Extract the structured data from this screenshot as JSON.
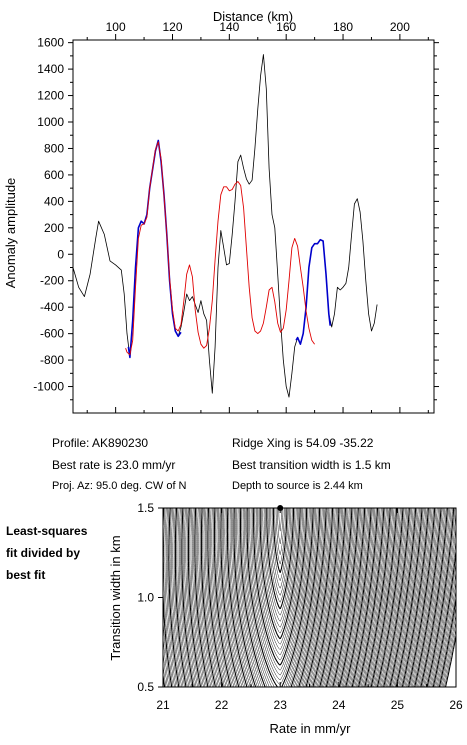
{
  "chart_data": [
    {
      "type": "line",
      "title": "",
      "xlabel": "Distance (km)",
      "ylabel": "Anomaly amplitude",
      "xlim": [
        85,
        212
      ],
      "ylim": [
        -1200,
        1620
      ],
      "x_axis_position": "top",
      "xticks": [
        100,
        120,
        140,
        160,
        180,
        200
      ],
      "yticks": [
        -1000,
        -800,
        -600,
        -400,
        -200,
        0,
        200,
        400,
        600,
        800,
        1000,
        1200,
        1400,
        1600
      ],
      "grid": false,
      "series": [
        {
          "color": "#000000",
          "points": [
            [
              85,
              -100
            ],
            [
              87,
              -250
            ],
            [
              89,
              -320
            ],
            [
              91,
              -150
            ],
            [
              93,
              120
            ],
            [
              94,
              250
            ],
            [
              96,
              150
            ],
            [
              98,
              -50
            ],
            [
              100,
              -80
            ],
            [
              102,
              -120
            ],
            [
              103,
              -300
            ],
            [
              104,
              -600
            ],
            [
              105,
              -780
            ],
            [
              106,
              -500
            ],
            [
              107,
              -100
            ],
            [
              108,
              200
            ],
            [
              109,
              250
            ],
            [
              110,
              230
            ],
            [
              111,
              300
            ],
            [
              112,
              500
            ],
            [
              114,
              780
            ],
            [
              115,
              860
            ],
            [
              116,
              700
            ],
            [
              117,
              450
            ],
            [
              118,
              150
            ],
            [
              119,
              -200
            ],
            [
              120,
              -450
            ],
            [
              121,
              -580
            ],
            [
              122,
              -620
            ],
            [
              123,
              -550
            ],
            [
              124,
              -430
            ],
            [
              125,
              -300
            ],
            [
              126,
              -350
            ],
            [
              127,
              -320
            ],
            [
              128,
              -380
            ],
            [
              129,
              -440
            ],
            [
              130,
              -350
            ],
            [
              131,
              -450
            ],
            [
              132,
              -500
            ],
            [
              133,
              -800
            ],
            [
              134,
              -1050
            ],
            [
              135,
              -700
            ],
            [
              136,
              -100
            ],
            [
              137,
              180
            ],
            [
              138,
              50
            ],
            [
              139,
              -80
            ],
            [
              140,
              -70
            ],
            [
              141,
              150
            ],
            [
              142,
              400
            ],
            [
              143,
              700
            ],
            [
              144,
              750
            ],
            [
              145,
              650
            ],
            [
              146,
              570
            ],
            [
              147,
              530
            ],
            [
              148,
              560
            ],
            [
              149,
              800
            ],
            [
              150,
              1100
            ],
            [
              151,
              1350
            ],
            [
              152,
              1510
            ],
            [
              153,
              1250
            ],
            [
              154,
              650
            ],
            [
              155,
              300
            ],
            [
              156,
              200
            ],
            [
              157,
              -150
            ],
            [
              158,
              -500
            ],
            [
              159,
              -800
            ],
            [
              160,
              -1000
            ],
            [
              161,
              -1080
            ],
            [
              162,
              -900
            ],
            [
              163,
              -700
            ],
            [
              164,
              -630
            ],
            [
              165,
              -680
            ],
            [
              166,
              -600
            ],
            [
              167,
              -400
            ],
            [
              168,
              -100
            ],
            [
              169,
              50
            ],
            [
              170,
              80
            ],
            [
              171,
              80
            ],
            [
              172,
              110
            ],
            [
              173,
              100
            ],
            [
              174,
              -150
            ],
            [
              175,
              -450
            ],
            [
              176,
              -550
            ],
            [
              177,
              -450
            ],
            [
              178,
              -250
            ],
            [
              179,
              -270
            ],
            [
              180,
              -250
            ],
            [
              181,
              -220
            ],
            [
              182,
              -100
            ],
            [
              183,
              150
            ],
            [
              184,
              380
            ],
            [
              185,
              420
            ],
            [
              186,
              320
            ],
            [
              187,
              100
            ],
            [
              188,
              -200
            ],
            [
              189,
              -450
            ],
            [
              190,
              -580
            ],
            [
              191,
              -520
            ],
            [
              192,
              -380
            ]
          ]
        },
        {
          "color": "#0000cc",
          "points": [
            [
              104.5,
              -700
            ],
            [
              105,
              -780
            ],
            [
              106,
              -500
            ],
            [
              107,
              -100
            ],
            [
              108,
              200
            ],
            [
              109,
              250
            ],
            [
              110,
              230
            ],
            [
              111,
              300
            ],
            [
              112,
              500
            ],
            [
              114,
              780
            ],
            [
              115,
              860
            ],
            [
              116,
              700
            ],
            [
              117,
              450
            ],
            [
              118,
              150
            ],
            [
              119,
              -200
            ],
            [
              120,
              -450
            ],
            [
              121,
              -580
            ],
            [
              122,
              -620
            ],
            [
              123,
              -590
            ],
            [
              163.5,
              -650
            ],
            [
              164,
              -630
            ],
            [
              165,
              -680
            ],
            [
              166,
              -600
            ],
            [
              167,
              -400
            ],
            [
              168,
              -100
            ],
            [
              169,
              50
            ],
            [
              170,
              80
            ],
            [
              171,
              80
            ],
            [
              172,
              110
            ],
            [
              173,
              100
            ],
            [
              174,
              -150
            ],
            [
              175,
              -450
            ],
            [
              175.5,
              -540
            ]
          ]
        },
        {
          "color": "#e00000",
          "points": [
            [
              103.5,
              -710
            ],
            [
              104,
              -740
            ],
            [
              105,
              -760
            ],
            [
              106,
              -650
            ],
            [
              107,
              -250
            ],
            [
              108,
              120
            ],
            [
              109,
              220
            ],
            [
              110,
              230
            ],
            [
              111,
              280
            ],
            [
              112,
              500
            ],
            [
              114,
              790
            ],
            [
              115,
              850
            ],
            [
              116,
              720
            ],
            [
              117,
              440
            ],
            [
              118,
              150
            ],
            [
              119,
              -180
            ],
            [
              120,
              -420
            ],
            [
              121,
              -560
            ],
            [
              122,
              -580
            ],
            [
              123,
              -530
            ],
            [
              124,
              -350
            ],
            [
              125,
              -150
            ],
            [
              126,
              -80
            ],
            [
              127,
              -170
            ],
            [
              128,
              -420
            ],
            [
              129,
              -590
            ],
            [
              130,
              -680
            ],
            [
              131,
              -710
            ],
            [
              132,
              -690
            ],
            [
              133,
              -560
            ],
            [
              134,
              -350
            ],
            [
              135,
              -40
            ],
            [
              136,
              250
            ],
            [
              137,
              450
            ],
            [
              138,
              510
            ],
            [
              139,
              510
            ],
            [
              140,
              480
            ],
            [
              141,
              490
            ],
            [
              142,
              530
            ],
            [
              143,
              550
            ],
            [
              144,
              520
            ],
            [
              145,
              350
            ],
            [
              146,
              50
            ],
            [
              147,
              -250
            ],
            [
              148,
              -480
            ],
            [
              149,
              -580
            ],
            [
              150,
              -600
            ],
            [
              151,
              -580
            ],
            [
              152,
              -520
            ],
            [
              153,
              -400
            ],
            [
              154,
              -270
            ],
            [
              155,
              -250
            ],
            [
              156,
              -360
            ],
            [
              157,
              -520
            ],
            [
              158,
              -590
            ],
            [
              159,
              -560
            ],
            [
              160,
              -420
            ],
            [
              161,
              -200
            ],
            [
              162,
              50
            ],
            [
              163,
              120
            ],
            [
              164,
              60
            ],
            [
              165,
              -100
            ],
            [
              166,
              -250
            ],
            [
              167,
              -430
            ],
            [
              168,
              -560
            ],
            [
              169,
              -650
            ],
            [
              170,
              -680
            ]
          ]
        }
      ]
    },
    {
      "type": "contour",
      "xlabel": "Rate in mm/yr",
      "ylabel": "Transition width in km",
      "xlim": [
        21,
        26
      ],
      "ylim": [
        0.5,
        1.5
      ],
      "xticks": [
        21,
        22,
        23,
        24,
        25,
        26
      ],
      "yticks": [
        0.5,
        1.0,
        1.5
      ],
      "best_fit": {
        "x": 23.0,
        "y": 1.5
      },
      "annotation": "Least-squares fit divided by best fit"
    }
  ],
  "profile_info": {
    "profile": "Profile: AK890230",
    "best_rate": "Best rate is 23.0 mm/yr",
    "proj_az": "Proj. Az: 95.0 deg. CW of N",
    "ridge_xing": "Ridge Xing is 54.09 -35.22",
    "best_transition": "Best transition width is 1.5 km",
    "depth": "Depth to source is   2.44 km"
  },
  "side_note": [
    "Least-squares",
    "fit divided by",
    "best fit"
  ]
}
